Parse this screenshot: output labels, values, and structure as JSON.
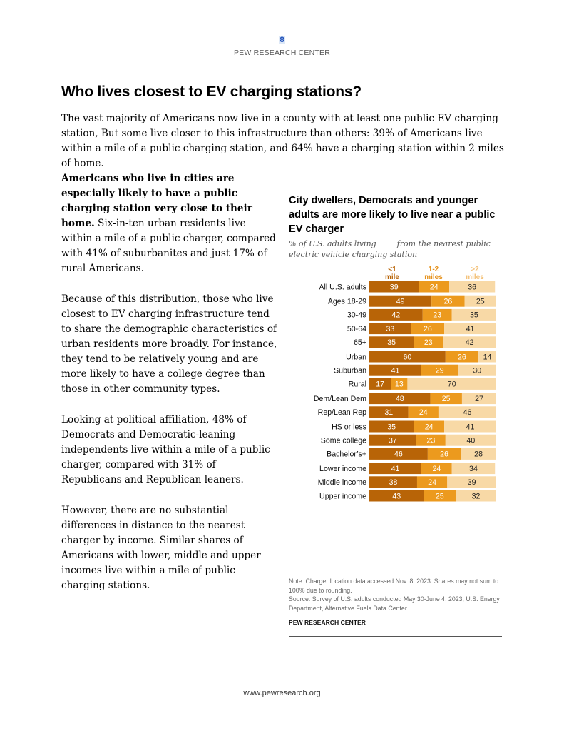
{
  "header": {
    "page_number": "8",
    "org": "PEW RESEARCH CENTER"
  },
  "title": "Who lives closest to EV charging stations?",
  "intro": "The vast majority of Americans now live in a county with at least one public EV charging station, But some live closer to this infrastructure than others: 39% of Americans live within a mile of a public charging station, and 64% have a charging station within 2 miles of home.",
  "body": {
    "p1_lead": "Americans who live in cities are especially likely to have a public charging station very close to their home.",
    "p1_rest": " Six-in-ten urban residents live within a mile of a public charger, compared with 41% of suburbanites and just 17% of rural Americans.",
    "p2": "Because of this distribution, those who live closest to EV charging infrastructure tend to share the demographic characteristics of urban residents more broadly. For instance, they tend to be relatively young and are more likely to have a college degree than those in other community types.",
    "p3": "Looking at political affiliation, 48% of Democrats and Democratic-leaning independents live within a mile of a public charger, compared with 31% of Republicans and Republican leaners.",
    "p4": "However, there are no substantial differences in distance to the nearest charger by income. Similar shares of Americans with lower, middle and upper incomes live within a mile of public charging stations."
  },
  "chart_data": {
    "type": "bar",
    "stacked": true,
    "orientation": "horizontal",
    "title": "City dwellers, Democrats and younger adults are more likely to live near a public EV charger",
    "subtitle": "% of U.S. adults living ____ from the nearest public electric vehicle charging station",
    "series": [
      {
        "name": "<1 mile",
        "label_line1": "<1",
        "label_line2": "mile",
        "color": "#b86407",
        "label_color": "#ffffff"
      },
      {
        "name": "1-2 miles",
        "label_line1": "1-2",
        "label_line2": "miles",
        "color": "#ec9a1e",
        "label_color": "#ffffff"
      },
      {
        "name": ">2 miles",
        "label_line1": ">2",
        "label_line2": "miles",
        "color": "#f8d9a6",
        "label_color": "#222222"
      }
    ],
    "header_colors": [
      "#b86407",
      "#e6911a",
      "#f4c27a"
    ],
    "groups": [
      {
        "rows": [
          {
            "label": "All U.S. adults",
            "values": [
              39,
              24,
              36
            ]
          }
        ]
      },
      {
        "rows": [
          {
            "label": "Ages 18-29",
            "values": [
              49,
              26,
              25
            ]
          },
          {
            "label": "30-49",
            "values": [
              42,
              23,
              35
            ]
          },
          {
            "label": "50-64",
            "values": [
              33,
              26,
              41
            ]
          },
          {
            "label": "65+",
            "values": [
              35,
              23,
              42
            ]
          }
        ]
      },
      {
        "rows": [
          {
            "label": "Urban",
            "values": [
              60,
              26,
              14
            ]
          },
          {
            "label": "Suburban",
            "values": [
              41,
              29,
              30
            ]
          },
          {
            "label": "Rural",
            "values": [
              17,
              13,
              70
            ]
          }
        ]
      },
      {
        "rows": [
          {
            "label": "Dem/Lean Dem",
            "values": [
              48,
              25,
              27
            ]
          },
          {
            "label": "Rep/Lean Rep",
            "values": [
              31,
              24,
              46
            ]
          }
        ]
      },
      {
        "rows": [
          {
            "label": "HS or less",
            "values": [
              35,
              24,
              41
            ]
          },
          {
            "label": "Some college",
            "values": [
              37,
              23,
              40
            ]
          },
          {
            "label": "Bachelor’s+",
            "values": [
              46,
              26,
              28
            ]
          }
        ]
      },
      {
        "rows": [
          {
            "label": "Lower income",
            "values": [
              41,
              24,
              34
            ]
          },
          {
            "label": "Middle income",
            "values": [
              38,
              24,
              39
            ]
          },
          {
            "label": "Upper income",
            "values": [
              43,
              25,
              32
            ]
          }
        ]
      }
    ],
    "note": "Note: Charger location data accessed Nov. 8, 2023. Shares may not sum to 100% due to rounding.",
    "source": "Source: Survey of U.S. adults conducted May 30-June 4, 2023; U.S. Energy Department, Alternative Fuels Data Center.",
    "source_org": "PEW RESEARCH CENTER"
  },
  "footer": {
    "url": "www.pewresearch.org"
  }
}
